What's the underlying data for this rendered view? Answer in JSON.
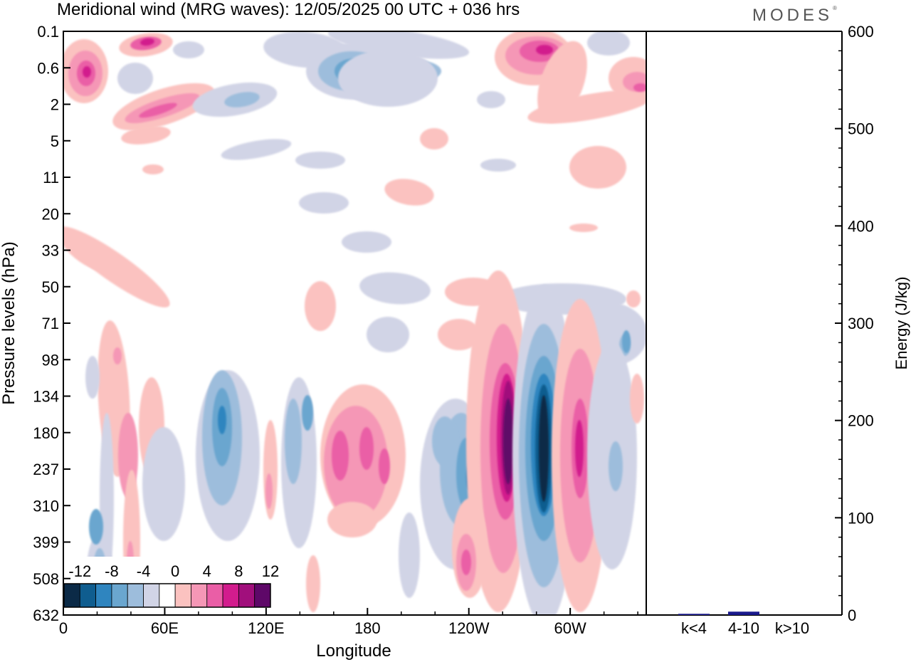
{
  "title": "Meridional wind (MRG waves):  12/05/2025  00 UTC  + 036 hrs",
  "brand": "MODES",
  "brand_mark": "®",
  "chart_data": [
    {
      "type": "heatmap",
      "xlabel": "Longitude",
      "ylabel": "Pressure levels (hPa)",
      "x_ticks": [
        "0",
        "60E",
        "120E",
        "180",
        "120W",
        "60W"
      ],
      "x_tick_degrees": [
        0,
        60,
        120,
        180,
        240,
        300
      ],
      "x_range_degrees": [
        0,
        345
      ],
      "y_ticks": [
        "0.1",
        "0.6",
        "2",
        "5",
        "11",
        "20",
        "33",
        "50",
        "71",
        "98",
        "134",
        "180",
        "237",
        "310",
        "399",
        "508",
        "632"
      ],
      "colorbar": {
        "labels": [
          "-12",
          "-8",
          "-4",
          "0",
          "4",
          "8",
          "12"
        ],
        "levels": [
          -14,
          -12,
          -10,
          -8,
          -6,
          -4,
          -2,
          2,
          4,
          6,
          8,
          10,
          12,
          14
        ],
        "colors": [
          "#0b2a47",
          "#0f5d8f",
          "#2f85bf",
          "#6aa6cf",
          "#9dbddc",
          "#d1d4e6",
          "#ffffff",
          "#fbc2c0",
          "#f597b6",
          "#ea5ea6",
          "#d21c8d",
          "#a10f7c",
          "#5e0868"
        ]
      },
      "features": [
        {
          "lon": 13,
          "level": "0.6",
          "value": 10
        },
        {
          "lon": 45,
          "level": "0.1",
          "value": 8
        },
        {
          "lon": 60,
          "level": "2",
          "value": 8
        },
        {
          "lon": 174,
          "level": "0.6",
          "value": -10
        },
        {
          "lon": 285,
          "level": "0.1",
          "value": 12
        },
        {
          "lon": 247,
          "level": "180",
          "value": 14
        },
        {
          "lon": 270,
          "level": "237",
          "value": -14
        },
        {
          "lon": 301,
          "level": "180",
          "value": 10
        },
        {
          "lon": 95,
          "level": "180",
          "value": -8
        },
        {
          "lon": 165,
          "level": "180",
          "value": 8
        },
        {
          "lon": 190,
          "level": "237",
          "value": 8
        },
        {
          "lon": 228,
          "level": "237",
          "value": -8
        },
        {
          "lon": 40,
          "level": "180",
          "value": 6
        }
      ]
    },
    {
      "type": "bar",
      "ylabel": "Energy (J/kg)",
      "categories": [
        "k<4",
        "4-10",
        "k>10"
      ],
      "values": [
        0.5,
        2,
        0
      ],
      "ylim": [
        0,
        600
      ],
      "y_ticks": [
        "0",
        "100",
        "200",
        "300",
        "400",
        "500",
        "600"
      ],
      "bar_color": "#1a1a8c"
    }
  ]
}
